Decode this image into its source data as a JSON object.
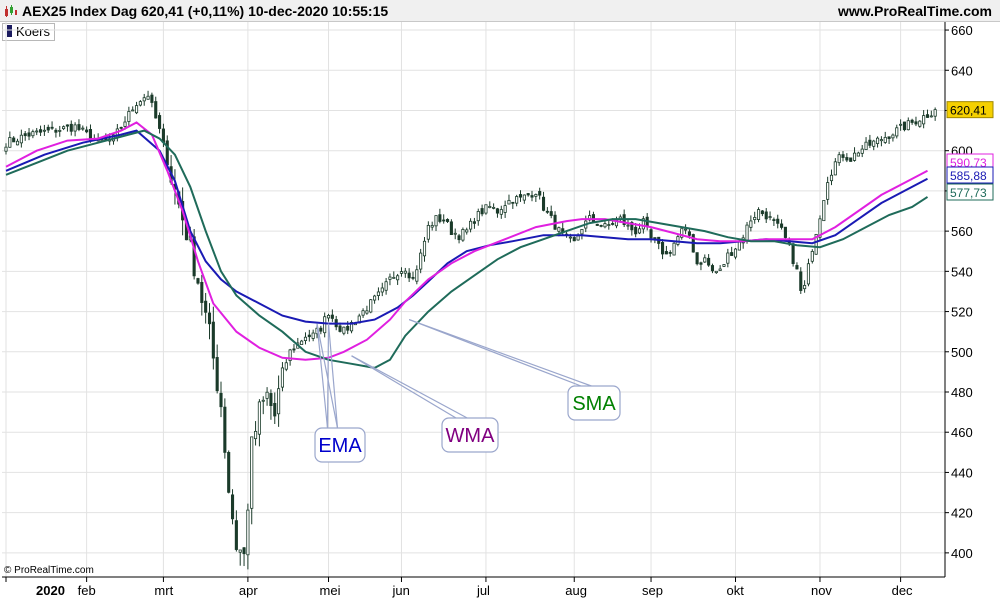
{
  "header": {
    "title": "AEX25 Index Dag 620,41 (+0,11%) 10-dec-2020 10:55:15",
    "site": "www.ProRealTime.com"
  },
  "legend": {
    "label": "Koers"
  },
  "copyright": "© ProRealTime.com",
  "colors": {
    "candle_up": "#ffffff",
    "candle_down": "#1b3b2a",
    "candle_outline": "#1b3b2a",
    "ema": "#1a1ab4",
    "wma": "#e020e0",
    "sma": "#1f6b5a",
    "callout_ema": "#0000cc",
    "callout_wma": "#800080",
    "callout_sma": "#008000",
    "callout_border": "#9aa6cc",
    "price_tag_bg": "#f5d000"
  },
  "chart_data": {
    "type": "candlestick",
    "title": "AEX25 Index Dag 620,41 (+0,11%) 10-dec-2020 10:55:15",
    "ylim": [
      388,
      664
    ],
    "y_ticks": [
      "400",
      "420",
      "440",
      "460",
      "480",
      "500",
      "520",
      "540",
      "560",
      "580",
      "600",
      "620",
      "640",
      "660"
    ],
    "x_ticks": [
      {
        "label": "2020",
        "pos": 0
      },
      {
        "label": "feb",
        "pos": 21
      },
      {
        "label": "mrt",
        "pos": 41
      },
      {
        "label": "apr",
        "pos": 63
      },
      {
        "label": "mei",
        "pos": 84
      },
      {
        "label": "jun",
        "pos": 103
      },
      {
        "label": "jul",
        "pos": 125
      },
      {
        "label": "aug",
        "pos": 148
      },
      {
        "label": "sep",
        "pos": 168
      },
      {
        "label": "okt",
        "pos": 190
      },
      {
        "label": "nov",
        "pos": 212
      },
      {
        "label": "dec",
        "pos": 233
      }
    ],
    "close_anchors": [
      [
        0,
        604
      ],
      [
        6,
        608
      ],
      [
        12,
        610
      ],
      [
        18,
        612
      ],
      [
        24,
        604
      ],
      [
        28,
        606
      ],
      [
        34,
        624
      ],
      [
        37,
        628
      ],
      [
        40,
        610
      ],
      [
        44,
        580
      ],
      [
        47,
        560
      ],
      [
        50,
        536
      ],
      [
        53,
        508
      ],
      [
        56,
        474
      ],
      [
        58,
        432
      ],
      [
        60,
        404
      ],
      [
        62,
        398
      ],
      [
        64,
        452
      ],
      [
        66,
        470
      ],
      [
        68,
        478
      ],
      [
        70,
        468
      ],
      [
        72,
        490
      ],
      [
        74,
        500
      ],
      [
        76,
        504
      ],
      [
        78,
        508
      ],
      [
        80,
        508
      ],
      [
        82,
        512
      ],
      [
        84,
        520
      ],
      [
        86,
        514
      ],
      [
        88,
        510
      ],
      [
        90,
        514
      ],
      [
        92,
        518
      ],
      [
        94,
        522
      ],
      [
        96,
        526
      ],
      [
        98,
        530
      ],
      [
        100,
        536
      ],
      [
        102,
        540
      ],
      [
        104,
        542
      ],
      [
        106,
        536
      ],
      [
        108,
        548
      ],
      [
        110,
        562
      ],
      [
        112,
        566
      ],
      [
        114,
        566
      ],
      [
        116,
        560
      ],
      [
        118,
        558
      ],
      [
        120,
        560
      ],
      [
        122,
        566
      ],
      [
        124,
        570
      ],
      [
        126,
        572
      ],
      [
        128,
        570
      ],
      [
        130,
        574
      ],
      [
        132,
        576
      ],
      [
        134,
        576
      ],
      [
        136,
        578
      ],
      [
        138,
        580
      ],
      [
        140,
        572
      ],
      [
        142,
        566
      ],
      [
        144,
        560
      ],
      [
        146,
        556
      ],
      [
        148,
        554
      ],
      [
        150,
        562
      ],
      [
        152,
        566
      ],
      [
        154,
        564
      ],
      [
        156,
        562
      ],
      [
        158,
        564
      ],
      [
        160,
        566
      ],
      [
        162,
        562
      ],
      [
        164,
        560
      ],
      [
        166,
        564
      ],
      [
        168,
        556
      ],
      [
        170,
        552
      ],
      [
        172,
        548
      ],
      [
        174,
        554
      ],
      [
        176,
        560
      ],
      [
        178,
        558
      ],
      [
        180,
        544
      ],
      [
        182,
        546
      ],
      [
        184,
        540
      ],
      [
        186,
        540
      ],
      [
        188,
        548
      ],
      [
        190,
        552
      ],
      [
        192,
        558
      ],
      [
        194,
        566
      ],
      [
        196,
        570
      ],
      [
        198,
        568
      ],
      [
        200,
        564
      ],
      [
        202,
        560
      ],
      [
        204,
        552
      ],
      [
        206,
        540
      ],
      [
        207,
        530
      ],
      [
        208,
        532
      ],
      [
        210,
        552
      ],
      [
        212,
        568
      ],
      [
        214,
        586
      ],
      [
        216,
        594
      ],
      [
        218,
        598
      ],
      [
        220,
        596
      ],
      [
        222,
        600
      ],
      [
        224,
        602
      ],
      [
        226,
        604
      ],
      [
        228,
        606
      ],
      [
        230,
        608
      ],
      [
        232,
        610
      ],
      [
        234,
        612
      ],
      [
        236,
        614
      ],
      [
        238,
        616
      ],
      [
        240,
        618
      ],
      [
        242,
        620.41
      ]
    ],
    "series": [
      {
        "name": "EMA",
        "last": "585,88",
        "points": [
          [
            0,
            590
          ],
          [
            10,
            598
          ],
          [
            20,
            604
          ],
          [
            30,
            608
          ],
          [
            34,
            610
          ],
          [
            40,
            600
          ],
          [
            44,
            585
          ],
          [
            48,
            560
          ],
          [
            52,
            545
          ],
          [
            56,
            536
          ],
          [
            60,
            530
          ],
          [
            66,
            524
          ],
          [
            72,
            518
          ],
          [
            78,
            515
          ],
          [
            84,
            514
          ],
          [
            90,
            514
          ],
          [
            96,
            516
          ],
          [
            102,
            522
          ],
          [
            106,
            528
          ],
          [
            110,
            535
          ],
          [
            115,
            544
          ],
          [
            120,
            550
          ],
          [
            126,
            553
          ],
          [
            132,
            555
          ],
          [
            140,
            558
          ],
          [
            146,
            558
          ],
          [
            150,
            558
          ],
          [
            156,
            557
          ],
          [
            162,
            556
          ],
          [
            168,
            556
          ],
          [
            174,
            555
          ],
          [
            180,
            554
          ],
          [
            186,
            554
          ],
          [
            192,
            555
          ],
          [
            198,
            556
          ],
          [
            204,
            555
          ],
          [
            210,
            554
          ],
          [
            216,
            558
          ],
          [
            222,
            566
          ],
          [
            228,
            574
          ],
          [
            234,
            580
          ],
          [
            240,
            586
          ]
        ]
      },
      {
        "name": "WMA",
        "last": "590,73",
        "points": [
          [
            0,
            592
          ],
          [
            8,
            600
          ],
          [
            16,
            605
          ],
          [
            24,
            606
          ],
          [
            30,
            610
          ],
          [
            34,
            614
          ],
          [
            38,
            608
          ],
          [
            42,
            590
          ],
          [
            46,
            570
          ],
          [
            50,
            545
          ],
          [
            54,
            524
          ],
          [
            60,
            510
          ],
          [
            66,
            502
          ],
          [
            72,
            497
          ],
          [
            78,
            496
          ],
          [
            84,
            497
          ],
          [
            88,
            500
          ],
          [
            94,
            506
          ],
          [
            100,
            516
          ],
          [
            104,
            525
          ],
          [
            110,
            536
          ],
          [
            116,
            544
          ],
          [
            122,
            550
          ],
          [
            130,
            556
          ],
          [
            138,
            562
          ],
          [
            146,
            565
          ],
          [
            150,
            566
          ],
          [
            156,
            566
          ],
          [
            162,
            564
          ],
          [
            168,
            562
          ],
          [
            174,
            559
          ],
          [
            180,
            556
          ],
          [
            186,
            555
          ],
          [
            192,
            555
          ],
          [
            198,
            556
          ],
          [
            204,
            556
          ],
          [
            210,
            556
          ],
          [
            216,
            562
          ],
          [
            222,
            570
          ],
          [
            228,
            578
          ],
          [
            234,
            584
          ],
          [
            240,
            590
          ]
        ]
      },
      {
        "name": "SMA",
        "last": "577,73",
        "points": [
          [
            0,
            588
          ],
          [
            8,
            594
          ],
          [
            16,
            600
          ],
          [
            24,
            604
          ],
          [
            30,
            607
          ],
          [
            36,
            610
          ],
          [
            40,
            606
          ],
          [
            44,
            598
          ],
          [
            48,
            582
          ],
          [
            52,
            560
          ],
          [
            56,
            540
          ],
          [
            60,
            528
          ],
          [
            66,
            518
          ],
          [
            72,
            510
          ],
          [
            78,
            500
          ],
          [
            84,
            496
          ],
          [
            90,
            494
          ],
          [
            96,
            492
          ],
          [
            100,
            496
          ],
          [
            104,
            508
          ],
          [
            110,
            520
          ],
          [
            116,
            530
          ],
          [
            122,
            538
          ],
          [
            128,
            546
          ],
          [
            134,
            552
          ],
          [
            140,
            556
          ],
          [
            146,
            560
          ],
          [
            152,
            564
          ],
          [
            158,
            566
          ],
          [
            164,
            566
          ],
          [
            170,
            564
          ],
          [
            176,
            562
          ],
          [
            182,
            560
          ],
          [
            188,
            557
          ],
          [
            194,
            555
          ],
          [
            200,
            555
          ],
          [
            206,
            553
          ],
          [
            212,
            552
          ],
          [
            218,
            556
          ],
          [
            224,
            562
          ],
          [
            230,
            568
          ],
          [
            236,
            572
          ],
          [
            240,
            577
          ]
        ]
      }
    ],
    "price_tags": [
      {
        "label": "620,41",
        "value": 620.41,
        "kind": "price"
      },
      {
        "label": "590,73",
        "value": 590.73,
        "kind": "wma"
      },
      {
        "label": "585,88",
        "value": 585.88,
        "kind": "ema"
      },
      {
        "label": "577,73",
        "value": 577.73,
        "kind": "sma"
      }
    ],
    "annotations": [
      {
        "label": "EMA",
        "color": "callout_ema",
        "targets": [
          [
            81,
            514
          ],
          [
            84,
            514
          ]
        ]
      },
      {
        "label": "WMA",
        "color": "callout_wma",
        "targets": [
          [
            90,
            498
          ]
        ]
      },
      {
        "label": "SMA",
        "color": "callout_sma",
        "targets": [
          [
            105,
            516
          ]
        ]
      }
    ]
  }
}
